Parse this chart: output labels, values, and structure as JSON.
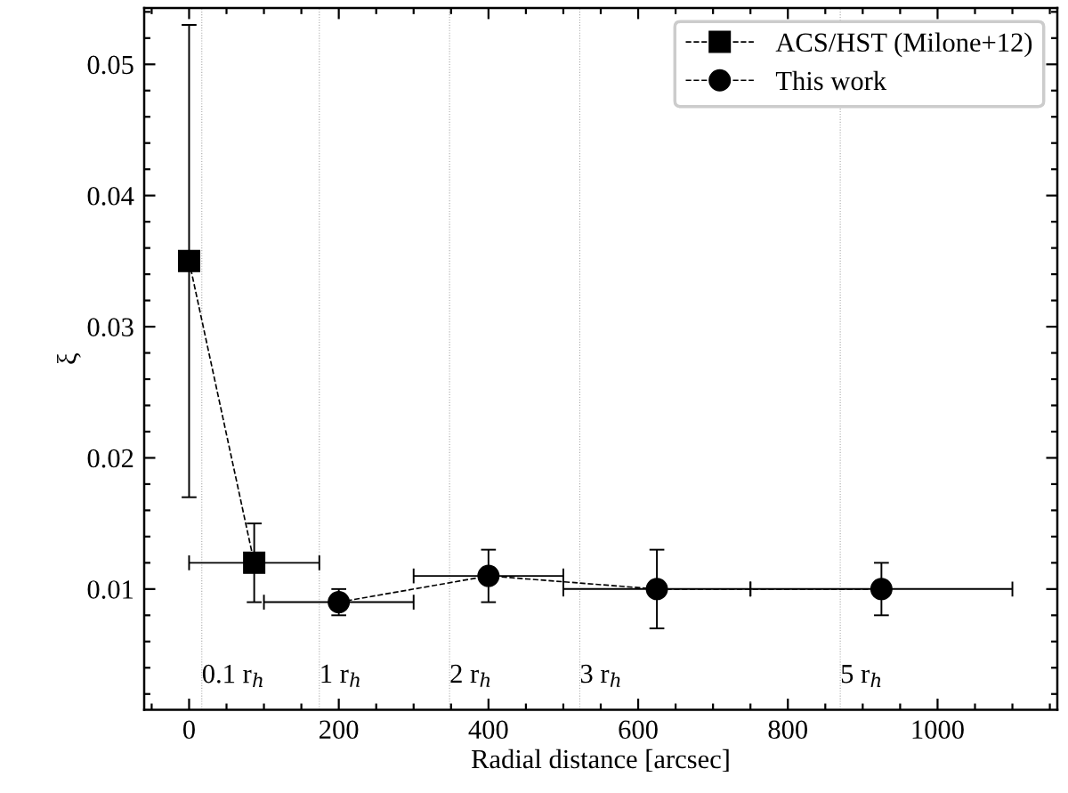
{
  "chart_data": {
    "type": "line",
    "xlabel": "Radial distance [arcsec]",
    "ylabel": "ξ",
    "series": [
      {
        "name": "ACS/HST (Milone+12)",
        "color": "#000000",
        "marker": "square",
        "line_style": "dashed",
        "x": [
          0,
          87
        ],
        "values": [
          0.035,
          0.012
        ],
        "errors": [
          [
            0.017,
            0.053
          ],
          [
            0.009,
            0.015
          ]
        ],
        "xerrors": [
          null,
          [
            0,
            174
          ]
        ]
      },
      {
        "name": "This work",
        "color": "#000000",
        "marker": "circle",
        "line_style": "dashed",
        "x": [
          200,
          400,
          625,
          925
        ],
        "values": [
          0.009,
          0.011,
          0.01,
          0.01
        ],
        "errors": [
          [
            0.008,
            0.01
          ],
          [
            0.009,
            0.013
          ],
          [
            0.007,
            0.013
          ],
          [
            0.008,
            0.012
          ]
        ],
        "xerrors": [
          [
            100,
            300
          ],
          [
            300,
            500
          ],
          [
            500,
            750
          ],
          [
            750,
            1100
          ]
        ]
      }
    ],
    "xlim": [
      -60,
      1160
    ],
    "xticks": [
      0,
      200,
      400,
      600,
      800,
      1000
    ],
    "ylim": [
      0.0008,
      0.0543
    ],
    "yticks": [
      0.01,
      0.02,
      0.03,
      0.04,
      0.05
    ],
    "ref_lines": [
      {
        "axis": "x",
        "value": 17,
        "label": "0.1 r$_{h}$",
        "color": "#aaaaaa",
        "line_style": "dotted"
      },
      {
        "axis": "x",
        "value": 174,
        "label": "1 r$_{h}$",
        "color": "#aaaaaa",
        "line_style": "dotted"
      },
      {
        "axis": "x",
        "value": 348,
        "label": "2 r$_{h}$",
        "color": "#aaaaaa",
        "line_style": "dotted"
      },
      {
        "axis": "x",
        "value": 522,
        "label": "3 r$_{h}$",
        "color": "#aaaaaa",
        "line_style": "dotted"
      },
      {
        "axis": "x",
        "value": 870,
        "label": "5 r$_{h}$",
        "color": "#aaaaaa",
        "line_style": "dotted"
      }
    ],
    "legend": "top right",
    "grid": false
  }
}
